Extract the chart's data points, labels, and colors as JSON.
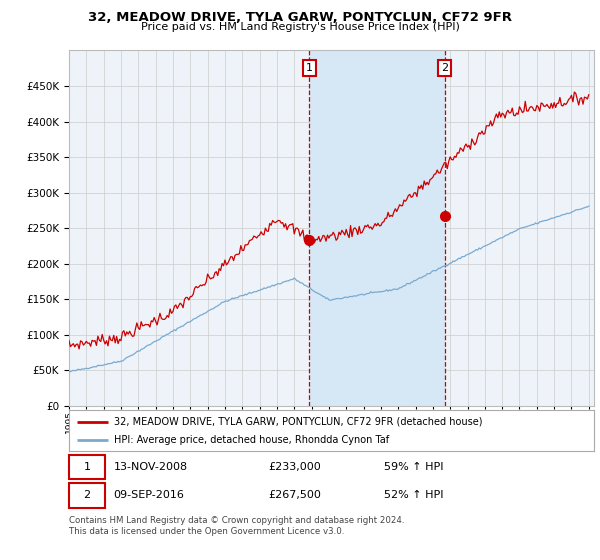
{
  "title": "32, MEADOW DRIVE, TYLA GARW, PONTYCLUN, CF72 9FR",
  "subtitle": "Price paid vs. HM Land Registry's House Price Index (HPI)",
  "legend_line1": "32, MEADOW DRIVE, TYLA GARW, PONTYCLUN, CF72 9FR (detached house)",
  "legend_line2": "HPI: Average price, detached house, Rhondda Cynon Taf",
  "annotation1_label": "1",
  "annotation1_date": "13-NOV-2008",
  "annotation1_price": "£233,000",
  "annotation1_hpi": "59% ↑ HPI",
  "annotation2_label": "2",
  "annotation2_date": "09-SEP-2016",
  "annotation2_price": "£267,500",
  "annotation2_hpi": "52% ↑ HPI",
  "footer": "Contains HM Land Registry data © Crown copyright and database right 2024.\nThis data is licensed under the Open Government Licence v3.0.",
  "sale1_x": 2008.87,
  "sale1_y": 233000,
  "sale2_x": 2016.69,
  "sale2_y": 267500,
  "red_line_color": "#cc0000",
  "blue_line_color": "#7aaad0",
  "fill_color": "#d6e8f5",
  "vline_color": "#cc0000",
  "background_color": "#ffffff",
  "chart_bg_color": "#eef3fa",
  "grid_color": "#cccccc",
  "ylim": [
    0,
    500000
  ],
  "xlim_start": 1995,
  "xlim_end": 2025
}
